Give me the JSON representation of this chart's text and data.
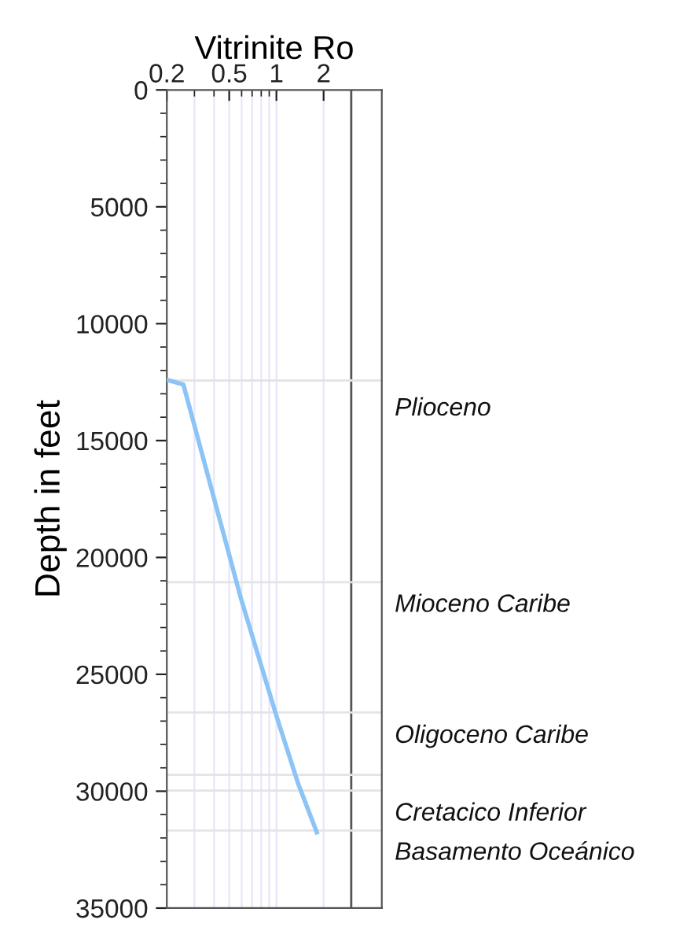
{
  "chart_data": {
    "type": "line",
    "xlabel": "Vitrinite Ro",
    "ylabel": "Depth in feet",
    "log": "x",
    "x": [
      0.2,
      0.255,
      0.593,
      1.0,
      1.38,
      1.81
    ],
    "series": [
      {
        "color": "#8cc4f5",
        "values": [
          12400,
          12600,
          21740,
          26780,
          29700,
          31760
        ]
      }
    ],
    "xlim": [
      0.2,
      4.7
    ],
    "xticks": [
      0.2,
      {
        "value": 0.3,
        "label": null
      },
      {
        "value": 0.4,
        "label": null
      },
      0.5,
      {
        "value": 0.6,
        "label": null
      },
      {
        "value": 0.7,
        "label": null
      },
      {
        "value": 0.8,
        "label": null
      },
      {
        "value": 0.9,
        "label": null
      },
      1,
      2,
      {
        "value": 3,
        "label": null
      }
    ],
    "ylim": [
      35000,
      0
    ],
    "yticks": [
      0,
      {
        "value": 1000,
        "label": null
      },
      {
        "value": 2000,
        "label": null
      },
      {
        "value": 3000,
        "label": null
      },
      {
        "value": 4000,
        "label": null
      },
      5000,
      {
        "value": 6000,
        "label": null
      },
      {
        "value": 7000,
        "label": null
      },
      {
        "value": 8000,
        "label": null
      },
      {
        "value": 9000,
        "label": null
      },
      10000,
      {
        "value": 11000,
        "label": null
      },
      {
        "value": 12000,
        "label": null
      },
      {
        "value": 13000,
        "label": null
      },
      {
        "value": 14000,
        "label": null
      },
      15000,
      {
        "value": 16000,
        "label": null
      },
      {
        "value": 17000,
        "label": null
      },
      {
        "value": 18000,
        "label": null
      },
      {
        "value": 19000,
        "label": null
      },
      20000,
      {
        "value": 21000,
        "label": null
      },
      {
        "value": 22000,
        "label": null
      },
      {
        "value": 23000,
        "label": null
      },
      {
        "value": 24000,
        "label": null
      },
      25000,
      {
        "value": 26000,
        "label": null
      },
      {
        "value": 27000,
        "label": null
      },
      {
        "value": 28000,
        "label": null
      },
      {
        "value": 29000,
        "label": null
      },
      30000,
      {
        "value": 31000,
        "label": null
      },
      {
        "value": 32000,
        "label": null
      },
      {
        "value": 33000,
        "label": null
      },
      {
        "value": 34000,
        "label": null
      },
      35000
    ],
    "grid": "x",
    "marker": "none",
    "line_style": "solid",
    "ref_lines": [
      {
        "axis": "x",
        "value": 3,
        "color": "#555555"
      },
      {
        "axis": "y",
        "value": 12430,
        "color": "#e4e4e4"
      },
      {
        "axis": "y",
        "value": 21060,
        "color": "#e4e4e4"
      },
      {
        "axis": "y",
        "value": 26630,
        "color": "#e4e4e4"
      },
      {
        "axis": "y",
        "value": 29300,
        "color": "#e4e4e4"
      },
      {
        "axis": "y",
        "value": 29970,
        "color": "#e4e4e4"
      },
      {
        "axis": "y",
        "value": 31680,
        "color": "#e4e4e4"
      }
    ],
    "annotations": [
      "Plioceno",
      "Mioceno Caribe",
      "Oligoceno Caribe",
      "Cretacico Inferior",
      "Basamento Oceánico"
    ]
  }
}
